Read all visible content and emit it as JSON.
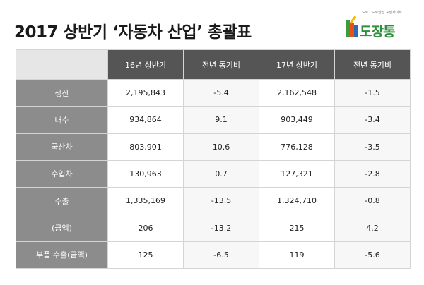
{
  "title": "2017 상반기 ‘자동차 산업’ 총괄표",
  "logo": {
    "tagline": "도로 · 도로안전 포털사이트",
    "name": "도장통"
  },
  "table": {
    "headers": [
      "16년 상반기",
      "전년 동기비",
      "17년 상반기",
      "전년 동기비"
    ],
    "rows": [
      {
        "label": "생산",
        "values": [
          "2,195,843",
          "-5.4",
          "2,162,548",
          "-1.5"
        ]
      },
      {
        "label": "내수",
        "values": [
          "934,864",
          "9.1",
          "903,449",
          "-3.4"
        ]
      },
      {
        "label": "국산차",
        "values": [
          "803,901",
          "10.6",
          "776,128",
          "-3.5"
        ]
      },
      {
        "label": "수입차",
        "values": [
          "130,963",
          "0.7",
          "127,321",
          "-2.8"
        ]
      },
      {
        "label": "수출",
        "values": [
          "1,335,169",
          "-13.5",
          "1,324,710",
          "-0.8"
        ]
      },
      {
        "label": "(금액)",
        "values": [
          "206",
          "-13.2",
          "215",
          "4.2"
        ]
      },
      {
        "label": "부품 수출(금액)",
        "values": [
          "125",
          "-6.5",
          "119",
          "-5.6"
        ]
      }
    ]
  }
}
